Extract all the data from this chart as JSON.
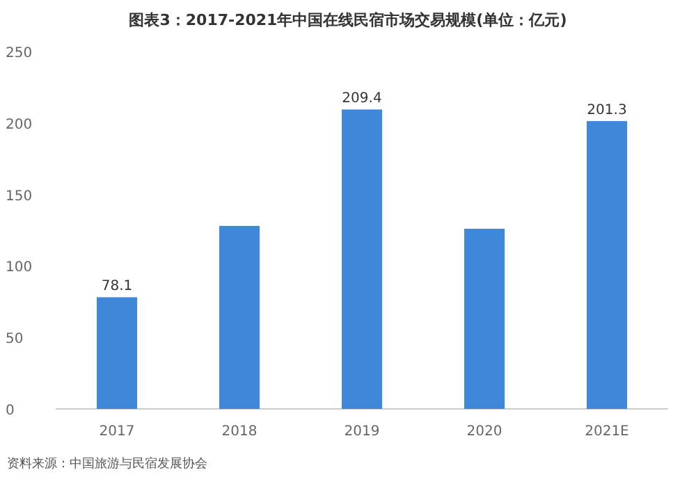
{
  "chart_data": {
    "type": "bar",
    "title": "图表3：2017-2021年中国在线民宿市场交易规模(单位：亿元)",
    "categories": [
      "2017",
      "2018",
      "2019",
      "2020",
      "2021E"
    ],
    "values": [
      78.1,
      128,
      209.4,
      126,
      201.3
    ],
    "value_labels": [
      "78.1",
      null,
      "209.4",
      null,
      "201.3"
    ],
    "color": "#3f88d9",
    "ylim": [
      0,
      250
    ],
    "yticks": [
      0,
      50,
      100,
      150,
      200,
      250
    ],
    "grid": false,
    "annotations": [
      "资料来源：中国旅游与民宿发展协会"
    ]
  }
}
